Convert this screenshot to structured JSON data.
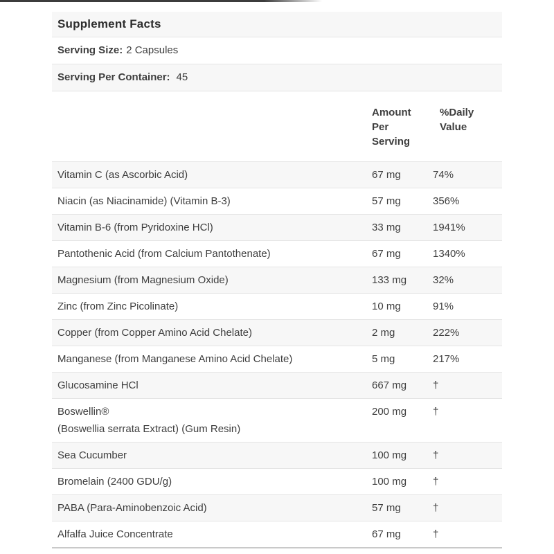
{
  "title": "Supplement Facts",
  "serving_size": {
    "label": "Serving Size:",
    "value": "2 Capsules"
  },
  "servings_per_container": {
    "label": "Serving Per Container:",
    "value": "45"
  },
  "columns": {
    "amount": "Amount Per Serving",
    "daily_value": "%Daily Value"
  },
  "rows": [
    {
      "name": "Vitamin C (as Ascorbic Acid)",
      "amount": "67 mg",
      "dv": "74%"
    },
    {
      "name": "Niacin (as Niacinamide) (Vitamin B-3)",
      "amount": "57 mg",
      "dv": "356%"
    },
    {
      "name": "Vitamin B-6 (from Pyridoxine HCl)",
      "amount": "33 mg",
      "dv": "1941%"
    },
    {
      "name": "Pantothenic Acid (from Calcium Pantothenate)",
      "amount": "67 mg",
      "dv": "1340%"
    },
    {
      "name": "Magnesium (from Magnesium Oxide)",
      "amount": "133 mg",
      "dv": "32%"
    },
    {
      "name": "Zinc (from Zinc Picolinate)",
      "amount": "10 mg",
      "dv": "91%"
    },
    {
      "name": "Copper (from Copper Amino Acid Chelate)",
      "amount": "2 mg",
      "dv": "222%"
    },
    {
      "name": "Manganese (from Manganese Amino Acid Chelate)",
      "amount": "5 mg",
      "dv": "217%"
    },
    {
      "name": "Glucosamine HCl",
      "amount": "667 mg",
      "dv": "†"
    },
    {
      "name": "Boswellin®",
      "name_line2": "(Boswellia serrata Extract) (Gum Resin)",
      "amount": "200 mg",
      "dv": "†"
    },
    {
      "name": "Sea Cucumber",
      "amount": "100 mg",
      "dv": "†"
    },
    {
      "name": "Bromelain (2400 GDU/g)",
      "amount": "100 mg",
      "dv": "†"
    },
    {
      "name": "PABA (Para-Aminobenzoic Acid)",
      "amount": "57 mg",
      "dv": "†"
    },
    {
      "name": "Alfalfa Juice Concentrate",
      "amount": "67 mg",
      "dv": "†"
    }
  ],
  "colors": {
    "text": "#3e3e3e",
    "title_text": "#2d2d2d",
    "stripe_bg": "#f7f7f7",
    "border": "#e4e4e4",
    "bottom_border": "#c9c9c9",
    "top_line": "#3c3c3c"
  }
}
